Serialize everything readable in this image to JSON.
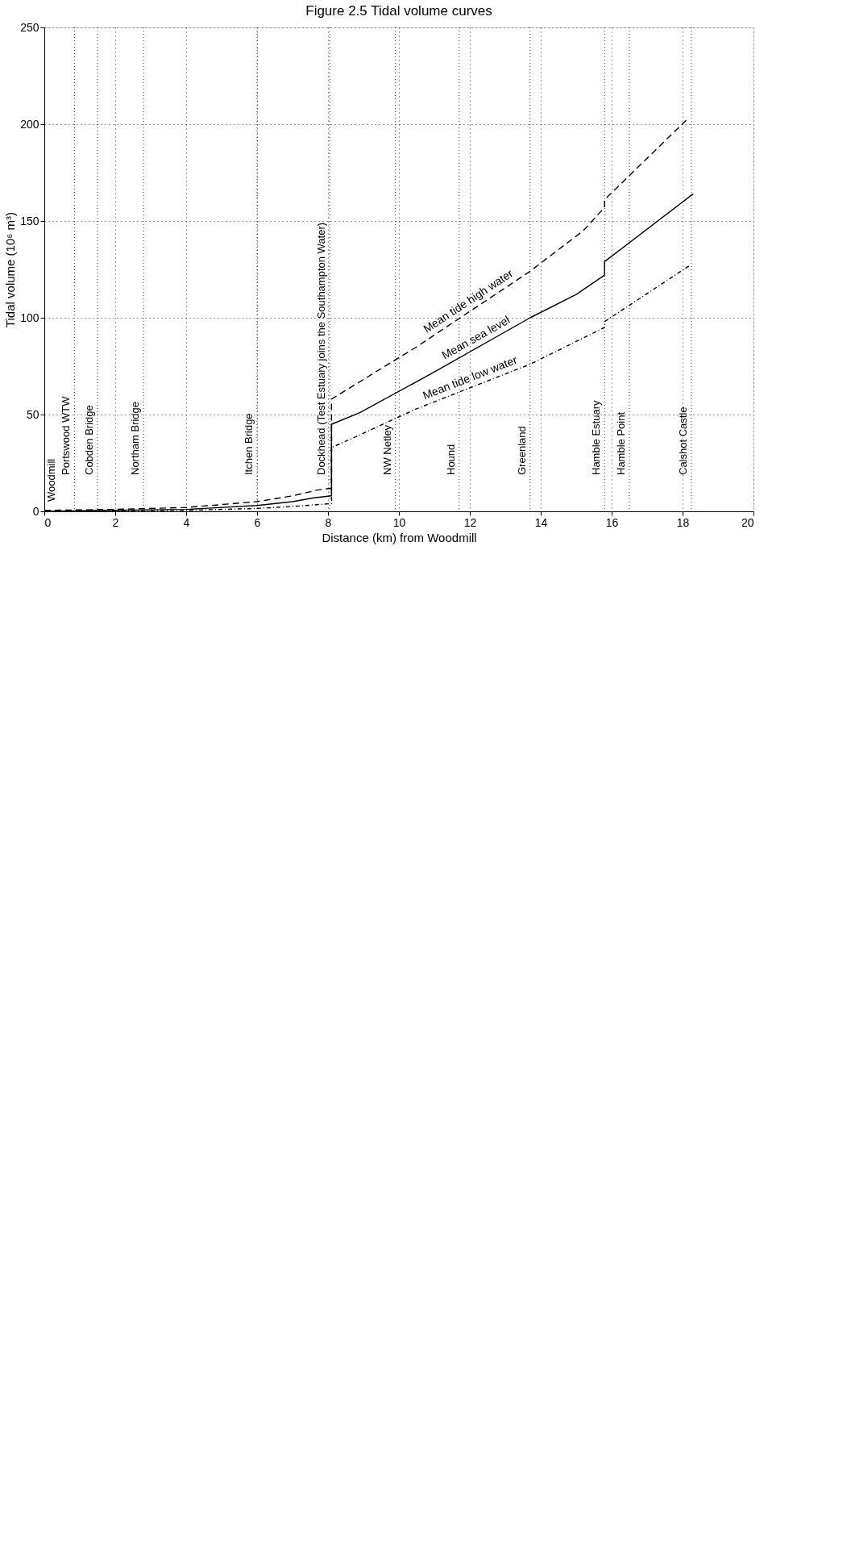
{
  "chart_data": {
    "type": "line",
    "title": "Figure 2.5 Tidal volume curves",
    "xlabel": "Distance (km) from Woodmill",
    "ylabel": "Tidal volume (10⁶ m³)",
    "xlim": [
      0,
      20
    ],
    "ylim": [
      0,
      250
    ],
    "annotations": [
      {
        "text": "Woodmill",
        "x": 0,
        "y": 0
      }
    ],
    "xticks": [
      0,
      2,
      4,
      6,
      8,
      10,
      12,
      14,
      16,
      18,
      20
    ],
    "yticks": [
      0,
      50,
      100,
      150,
      200,
      250
    ],
    "grid": true,
    "series": [
      {
        "name": "Mean tide high water",
        "color": "#000000",
        "line_style": "dashed",
        "x": [
          0,
          2,
          4,
          6,
          7,
          7.7,
          8.1,
          8.1,
          10.5,
          13.7,
          15.2,
          15.8,
          15.8,
          18.1
        ],
        "values": [
          0.5,
          1,
          2,
          5,
          8,
          11,
          12,
          58,
          85,
          124,
          145,
          157,
          161,
          202
        ]
      },
      {
        "name": "Mean sea level",
        "color": "#000000",
        "line_style": "solid",
        "x": [
          0,
          2,
          4,
          6,
          7,
          7.6,
          8.1,
          8.1,
          8.9,
          10.9,
          13.7,
          15,
          15.8,
          15.8,
          18.3
        ],
        "values": [
          0,
          0.5,
          1,
          3,
          5,
          7,
          8,
          45,
          51,
          71,
          100,
          112,
          122,
          129,
          164
        ]
      },
      {
        "name": "Mean tide low water",
        "color": "#000000",
        "line_style": "dashdot",
        "x": [
          0,
          2,
          4,
          6,
          7,
          8.1,
          8.1,
          8.6,
          10.5,
          13.7,
          15.8,
          15.8,
          18.2
        ],
        "values": [
          0,
          0.3,
          0.5,
          1.5,
          2.5,
          4,
          33,
          37,
          53,
          76,
          95,
          98,
          127
        ]
      }
    ],
    "ref_lines": [
      {
        "axis": "x",
        "value": 0.85,
        "label": "Portswood WTW",
        "line_style": "dotted"
      },
      {
        "axis": "x",
        "value": 1.5,
        "label": "Cobden Bridge",
        "line_style": "dotted"
      },
      {
        "axis": "x",
        "value": 2.8,
        "label": "Northam Bridge",
        "line_style": "dotted"
      },
      {
        "axis": "x",
        "value": 6,
        "label": "Itchen Bridge",
        "line_style": "dotted"
      },
      {
        "axis": "x",
        "value": 8.05,
        "label": "Dockhead (Test Estuary joins the Southampton Water)",
        "line_style": "dotted"
      },
      {
        "axis": "x",
        "value": 9.9,
        "label": "NW Netley",
        "line_style": "dotted"
      },
      {
        "axis": "x",
        "value": 11.7,
        "label": "Hound",
        "line_style": "dotted"
      },
      {
        "axis": "x",
        "value": 13.7,
        "label": "Greenland",
        "line_style": "dotted"
      },
      {
        "axis": "x",
        "value": 15.8,
        "label": "Hamble Estuary",
        "line_style": "dotted"
      },
      {
        "axis": "x",
        "value": 16.5,
        "label": "Hamble Point",
        "line_style": "dotted"
      },
      {
        "axis": "x",
        "value": 18.25,
        "label": "Calshot Castle",
        "line_style": "dotted"
      }
    ]
  }
}
